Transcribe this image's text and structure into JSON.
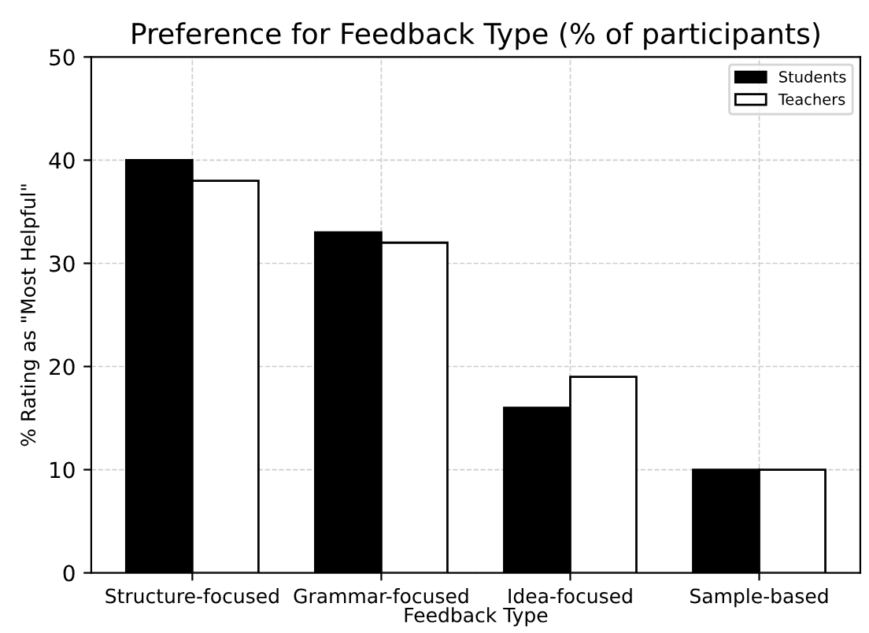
{
  "chart_data": {
    "type": "bar",
    "title": "Preference for Feedback Type (% of participants)",
    "xlabel": "Feedback Type",
    "ylabel": "% Rating as \"Most Helpful\"",
    "categories": [
      "Structure-focused",
      "Grammar-focused",
      "Idea-focused",
      "Sample-based"
    ],
    "series": [
      {
        "name": "Students",
        "color": "#000000",
        "values": [
          40,
          33,
          16,
          10
        ]
      },
      {
        "name": "Teachers",
        "color": "#ffffff",
        "values": [
          38,
          32,
          19,
          10
        ]
      }
    ],
    "ylim": [
      0,
      50
    ],
    "yticks": [
      0,
      10,
      20,
      30,
      40,
      50
    ],
    "grid": true,
    "legend": "top right"
  }
}
